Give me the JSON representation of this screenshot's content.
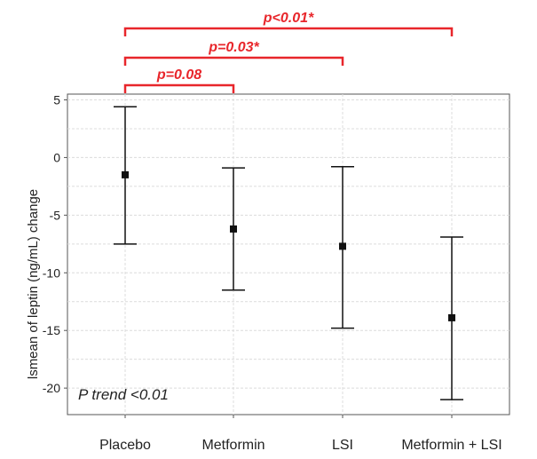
{
  "chart_data": {
    "type": "scatter",
    "ylabel": "lsmean of leptin (ng/mL) change",
    "categories": [
      "Placebo",
      "Metformin",
      "LSI",
      "Metformin + LSI"
    ],
    "series": [
      {
        "values": [
          -1.5,
          -6.2,
          -7.7,
          -13.9
        ],
        "lower": [
          -7.5,
          -11.5,
          -14.8,
          -21.0
        ],
        "upper": [
          4.4,
          -0.9,
          -0.8,
          -6.9
        ]
      }
    ],
    "ylim": [
      -22.3,
      5.5
    ],
    "yticks": [
      5,
      0,
      -5,
      -10,
      -15,
      -20
    ],
    "ytick_labels": [
      "5",
      "0",
      "-5",
      "-10",
      "-15",
      "-20"
    ],
    "grid": true,
    "annotation": "P trend <0.01",
    "comparisons": [
      {
        "from": "Placebo",
        "to": "Metformin",
        "label": "p=0.08"
      },
      {
        "from": "Placebo",
        "to": "LSI",
        "label": "p=0.03*"
      },
      {
        "from": "Placebo",
        "to": "Metformin + LSI",
        "label": "p<0.01*"
      }
    ],
    "colors": {
      "bracket": "#e8262b",
      "marker": "#111111",
      "grid": "#dcdcdc",
      "frame": "#555555"
    }
  }
}
